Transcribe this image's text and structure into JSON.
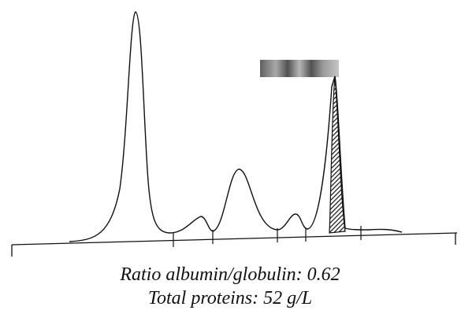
{
  "captions": [
    "Ratio albumin/globulin: 0.62",
    "Total proteins: 52 g/L"
  ]
}
